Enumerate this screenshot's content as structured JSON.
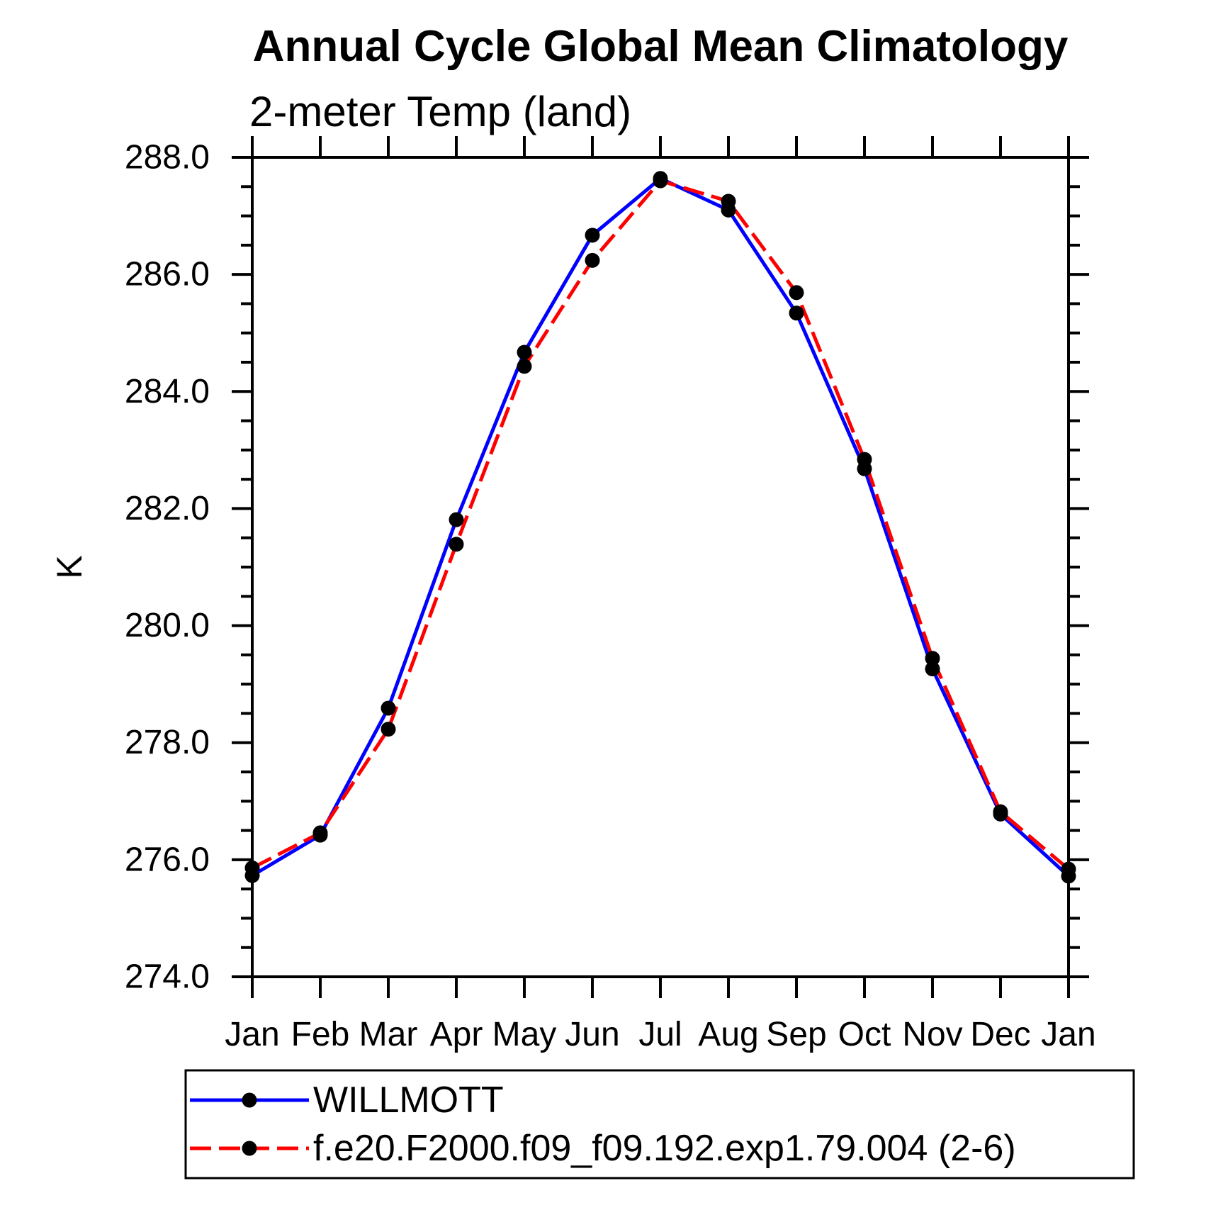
{
  "title": "Annual Cycle Global Mean Climatology",
  "subtitle": "2-meter Temp (land)",
  "y_axis": {
    "label": "K",
    "min": 274.0,
    "max": 288.0,
    "major_step": 2.0,
    "minor_step": 0.5,
    "tick_labels": [
      "288.0",
      "286.0",
      "284.0",
      "282.0",
      "280.0",
      "278.0",
      "276.0",
      "274.0"
    ]
  },
  "x_axis": {
    "tick_labels": [
      "Jan",
      "Feb",
      "Mar",
      "Apr",
      "May",
      "Jun",
      "Jul",
      "Aug",
      "Sep",
      "Oct",
      "Nov",
      "Dec",
      "Jan"
    ]
  },
  "legend": {
    "entries": [
      {
        "label": "WILLMOTT",
        "color": "#0000ff",
        "style": "solid"
      },
      {
        "label": "f.e20.F2000.f09_f09.192.exp1.79.004 (2-6)",
        "color": "#ff0000",
        "style": "dashed"
      }
    ]
  },
  "colors": {
    "series1": "#0000ff",
    "series2": "#ff0000",
    "marker": "#000000",
    "axis": "#000000"
  },
  "chart_data": {
    "type": "line",
    "x": [
      "Jan",
      "Feb",
      "Mar",
      "Apr",
      "May",
      "Jun",
      "Jul",
      "Aug",
      "Sep",
      "Oct",
      "Nov",
      "Dec",
      "Jan"
    ],
    "series": [
      {
        "name": "WILLMOTT",
        "color": "#0000ff",
        "style": "solid",
        "marker": "circle",
        "values": [
          275.73,
          276.42,
          278.59,
          281.81,
          284.67,
          286.67,
          287.64,
          287.1,
          285.34,
          282.68,
          279.26,
          276.78,
          275.72
        ]
      },
      {
        "name": "f.e20.F2000.f09_f09.192.exp1.79.004 (2-6)",
        "color": "#ff0000",
        "style": "dashed",
        "marker": "circle",
        "values": [
          275.86,
          276.46,
          278.23,
          281.39,
          284.43,
          286.24,
          287.6,
          287.25,
          285.69,
          282.84,
          279.44,
          276.82,
          275.84
        ]
      }
    ],
    "title": "Annual Cycle Global Mean Climatology",
    "subtitle": "2-meter Temp (land)",
    "xlabel": "",
    "ylabel": "K",
    "ylim": [
      274.0,
      288.0
    ],
    "y_major_step": 2.0,
    "y_minor_step": 0.5,
    "grid": false,
    "legend_position": "bottom"
  }
}
